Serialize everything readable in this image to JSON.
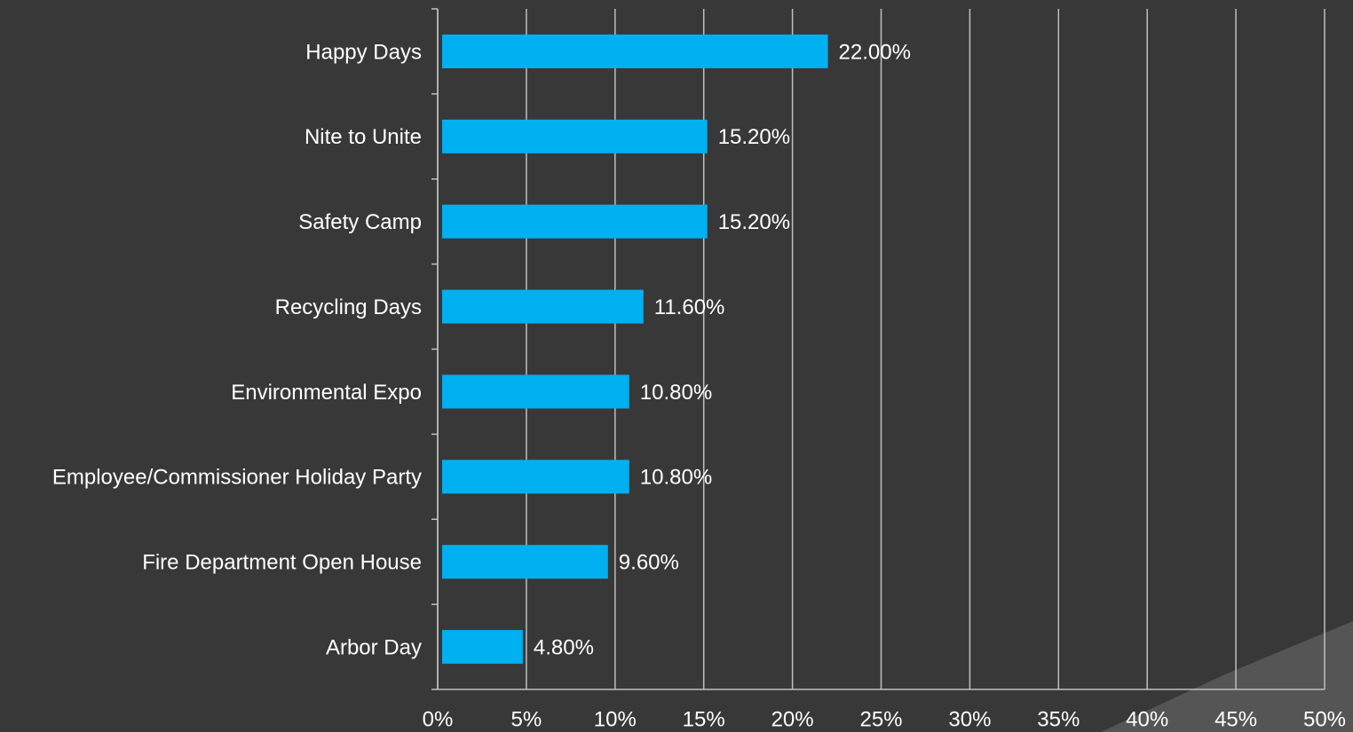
{
  "chart_data": {
    "type": "bar",
    "orientation": "horizontal",
    "categories": [
      "Happy Days",
      "Nite to Unite",
      "Safety Camp",
      "Recycling Days",
      "Environmental Expo",
      "Employee/Commissioner Holiday Party",
      "Fire Department Open House",
      "Arbor Day"
    ],
    "values": [
      22.0,
      15.2,
      15.2,
      11.6,
      10.8,
      10.8,
      9.6,
      4.8
    ],
    "value_labels": [
      "22.00%",
      "15.20%",
      "15.20%",
      "11.60%",
      "10.80%",
      "10.80%",
      "9.60%",
      "4.80%"
    ],
    "color": "#00b0f0",
    "xlim": [
      0,
      50
    ],
    "xticks": [
      {
        "value": 0,
        "label": "0%"
      },
      {
        "value": 5,
        "label": "5%"
      },
      {
        "value": 10,
        "label": "10%"
      },
      {
        "value": 15,
        "label": "15%"
      },
      {
        "value": 20,
        "label": "20%"
      },
      {
        "value": 25,
        "label": "25%"
      },
      {
        "value": 30,
        "label": "30%"
      },
      {
        "value": 35,
        "label": "35%"
      },
      {
        "value": 40,
        "label": "40%"
      },
      {
        "value": 45,
        "label": "45%"
      },
      {
        "value": 50,
        "label": "50%"
      }
    ],
    "grid": true
  }
}
